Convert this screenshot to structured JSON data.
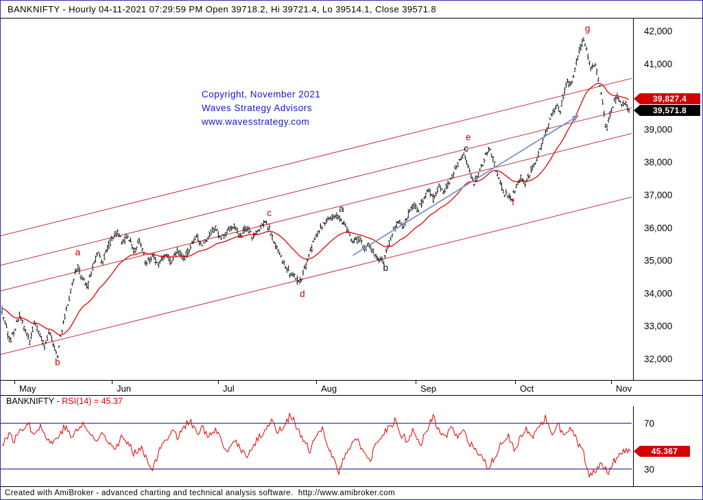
{
  "titlebar": {
    "text": "BANKNIFTY - Hourly 04-11-2021 07:29:59 PM Open 39718.2, Hi 39721.4, Lo 39514.1, Close 39571.8"
  },
  "copyright": {
    "line1": "Copyright, November 2021",
    "line2": "Waves Strategy Advisors",
    "line3": "www.wavesstrategy.com"
  },
  "rsi_panel": {
    "symbol": "BANKNIFTY",
    "separator": " - ",
    "formula": "RSI(14)",
    "value_text": " = 45.37"
  },
  "statusbar": {
    "text": "Created with AmiBroker - advanced charting and technical analysis software.  http://www.amibroker.com"
  },
  "chart_data": [
    {
      "type": "candlestick",
      "symbol": "BANKNIFTY",
      "interval": "Hourly",
      "timestamp": "04-11-2021 07:29:59 PM",
      "last_bar": {
        "open": 39718.2,
        "high": 39721.4,
        "low": 39514.1,
        "close": 39571.8
      },
      "y_axis": {
        "min": 32000,
        "max": 42000,
        "ticks": [
          {
            "value": 42000,
            "label": "42,000"
          },
          {
            "value": 41000,
            "label": "41,000"
          },
          {
            "value": 40000,
            "label": "40,000"
          },
          {
            "value": 39000,
            "label": "39,000"
          },
          {
            "value": 38000,
            "label": "38,000"
          },
          {
            "value": 37000,
            "label": "37,000"
          },
          {
            "value": 36000,
            "label": "36,000"
          },
          {
            "value": 35000,
            "label": "35,000"
          },
          {
            "value": 34000,
            "label": "34,000"
          },
          {
            "value": 33000,
            "label": "33,000"
          },
          {
            "value": 32000,
            "label": "32,000"
          }
        ]
      },
      "x_axis": {
        "months": [
          {
            "label": "May",
            "t": 0.022
          },
          {
            "label": "Jun",
            "t": 0.176
          },
          {
            "label": "Jul",
            "t": 0.345
          },
          {
            "label": "Aug",
            "t": 0.5
          },
          {
            "label": "Sep",
            "t": 0.658
          },
          {
            "label": "Oct",
            "t": 0.815
          },
          {
            "label": "Nov",
            "t": 0.967
          }
        ]
      },
      "colors": {
        "candle": "#000000",
        "ma": "#e00000",
        "channel": "#c23030",
        "arrow": "#7a93c8"
      },
      "channel_lines": [
        {
          "start": 35750,
          "end": 40550
        },
        {
          "start": 34850,
          "end": 39650
        },
        {
          "start": 34070,
          "end": 38870
        },
        {
          "start": 32130,
          "end": 36930
        }
      ],
      "trend_arrow": {
        "from": [
          0.558,
          35150
        ],
        "to": [
          0.916,
          39420
        ]
      },
      "wave_labels": [
        {
          "t": 0.118,
          "price": 35150,
          "text": "a",
          "color": "#d40000"
        },
        {
          "t": 0.086,
          "price": 31800,
          "text": "b",
          "color": "#d40000"
        },
        {
          "t": 0.422,
          "price": 36350,
          "text": "c",
          "color": "#d40000"
        },
        {
          "t": 0.474,
          "price": 33880,
          "text": "d",
          "color": "#d40000"
        },
        {
          "t": 0.536,
          "price": 36480,
          "text": "a",
          "color": "#000000"
        },
        {
          "t": 0.606,
          "price": 34680,
          "text": "b",
          "color": "#000000"
        },
        {
          "t": 0.734,
          "price": 38320,
          "text": "c",
          "color": "#000000"
        },
        {
          "t": 0.737,
          "price": 38660,
          "text": "e",
          "color": "#d40000"
        },
        {
          "t": 0.81,
          "price": 36680,
          "text": "f",
          "color": "#d40000"
        },
        {
          "t": 0.926,
          "price": 41980,
          "text": "g",
          "color": "#d40000"
        }
      ],
      "markers": [
        {
          "label": "39,827.4",
          "value": 39827.4,
          "color": "#d40000"
        },
        {
          "label": "39,571.8",
          "value": 39571.8,
          "color": "#000000"
        }
      ],
      "price_path": [
        [
          0,
          33500
        ],
        [
          0.006,
          33050
        ],
        [
          0.012,
          32500
        ],
        [
          0.02,
          32850
        ],
        [
          0.028,
          33350
        ],
        [
          0.036,
          32900
        ],
        [
          0.044,
          32500
        ],
        [
          0.052,
          33100
        ],
        [
          0.06,
          32700
        ],
        [
          0.068,
          32400
        ],
        [
          0.076,
          32850
        ],
        [
          0.084,
          32300
        ],
        [
          0.089,
          32100
        ],
        [
          0.096,
          32950
        ],
        [
          0.104,
          33600
        ],
        [
          0.112,
          34250
        ],
        [
          0.12,
          34850
        ],
        [
          0.128,
          34450
        ],
        [
          0.136,
          34150
        ],
        [
          0.144,
          34700
        ],
        [
          0.152,
          35250
        ],
        [
          0.16,
          34900
        ],
        [
          0.168,
          35400
        ],
        [
          0.176,
          35650
        ],
        [
          0.184,
          35900
        ],
        [
          0.192,
          35500
        ],
        [
          0.2,
          35800
        ],
        [
          0.21,
          35300
        ],
        [
          0.22,
          35600
        ],
        [
          0.23,
          34900
        ],
        [
          0.24,
          35150
        ],
        [
          0.25,
          34850
        ],
        [
          0.26,
          35250
        ],
        [
          0.27,
          34950
        ],
        [
          0.28,
          35350
        ],
        [
          0.29,
          35050
        ],
        [
          0.3,
          35400
        ],
        [
          0.31,
          35700
        ],
        [
          0.32,
          35450
        ],
        [
          0.33,
          35800
        ],
        [
          0.34,
          36000
        ],
        [
          0.35,
          35650
        ],
        [
          0.36,
          35900
        ],
        [
          0.37,
          36100
        ],
        [
          0.38,
          35750
        ],
        [
          0.39,
          36000
        ],
        [
          0.4,
          35700
        ],
        [
          0.41,
          36000
        ],
        [
          0.42,
          36200
        ],
        [
          0.43,
          35800
        ],
        [
          0.44,
          35300
        ],
        [
          0.45,
          34900
        ],
        [
          0.46,
          34600
        ],
        [
          0.47,
          34420
        ],
        [
          0.476,
          34350
        ],
        [
          0.484,
          34800
        ],
        [
          0.492,
          35250
        ],
        [
          0.5,
          35750
        ],
        [
          0.51,
          36050
        ],
        [
          0.52,
          36200
        ],
        [
          0.53,
          36350
        ],
        [
          0.538,
          36300
        ],
        [
          0.546,
          36100
        ],
        [
          0.554,
          35800
        ],
        [
          0.562,
          35550
        ],
        [
          0.57,
          35650
        ],
        [
          0.578,
          35350
        ],
        [
          0.586,
          35500
        ],
        [
          0.594,
          35150
        ],
        [
          0.602,
          35050
        ],
        [
          0.608,
          34950
        ],
        [
          0.616,
          35450
        ],
        [
          0.624,
          35900
        ],
        [
          0.632,
          36200
        ],
        [
          0.64,
          36050
        ],
        [
          0.648,
          36400
        ],
        [
          0.656,
          36700
        ],
        [
          0.664,
          36500
        ],
        [
          0.672,
          36900
        ],
        [
          0.68,
          37150
        ],
        [
          0.688,
          36850
        ],
        [
          0.696,
          37250
        ],
        [
          0.704,
          37050
        ],
        [
          0.712,
          37350
        ],
        [
          0.72,
          37650
        ],
        [
          0.728,
          37950
        ],
        [
          0.737,
          38200
        ],
        [
          0.745,
          37700
        ],
        [
          0.753,
          37350
        ],
        [
          0.761,
          37650
        ],
        [
          0.769,
          38050
        ],
        [
          0.777,
          38450
        ],
        [
          0.785,
          37950
        ],
        [
          0.793,
          37450
        ],
        [
          0.8,
          37100
        ],
        [
          0.807,
          36950
        ],
        [
          0.813,
          36850
        ],
        [
          0.82,
          37250
        ],
        [
          0.828,
          37550
        ],
        [
          0.836,
          37350
        ],
        [
          0.844,
          37750
        ],
        [
          0.852,
          38050
        ],
        [
          0.86,
          38450
        ],
        [
          0.868,
          38950
        ],
        [
          0.876,
          39350
        ],
        [
          0.884,
          39750
        ],
        [
          0.89,
          39550
        ],
        [
          0.896,
          40050
        ],
        [
          0.902,
          40450
        ],
        [
          0.908,
          40250
        ],
        [
          0.914,
          40850
        ],
        [
          0.92,
          41350
        ],
        [
          0.928,
          41750
        ],
        [
          0.934,
          41250
        ],
        [
          0.94,
          40850
        ],
        [
          0.946,
          41050
        ],
        [
          0.952,
          40450
        ],
        [
          0.958,
          39850
        ],
        [
          0.964,
          38950
        ],
        [
          0.97,
          39450
        ],
        [
          0.976,
          39850
        ],
        [
          0.982,
          39980
        ],
        [
          0.988,
          39680
        ],
        [
          0.994,
          39780
        ],
        [
          1,
          39572
        ]
      ]
    },
    {
      "type": "line",
      "name": "RSI(14)",
      "value": 45.37,
      "value_label": "45.367",
      "ylim": [
        15,
        85
      ],
      "color": "#e00000",
      "level_color": "#000080",
      "levels": [
        {
          "value": 70,
          "label": "70"
        },
        {
          "value": 30,
          "label": "30"
        }
      ],
      "path": [
        [
          0,
          52
        ],
        [
          0.01,
          60
        ],
        [
          0.02,
          55
        ],
        [
          0.03,
          65
        ],
        [
          0.04,
          70
        ],
        [
          0.05,
          62
        ],
        [
          0.06,
          68
        ],
        [
          0.07,
          58
        ],
        [
          0.08,
          52
        ],
        [
          0.09,
          60
        ],
        [
          0.1,
          67
        ],
        [
          0.11,
          58
        ],
        [
          0.12,
          64
        ],
        [
          0.13,
          70
        ],
        [
          0.14,
          60
        ],
        [
          0.15,
          54
        ],
        [
          0.16,
          62
        ],
        [
          0.17,
          55
        ],
        [
          0.18,
          48
        ],
        [
          0.19,
          58
        ],
        [
          0.2,
          52
        ],
        [
          0.21,
          44
        ],
        [
          0.22,
          50
        ],
        [
          0.23,
          40
        ],
        [
          0.24,
          30
        ],
        [
          0.25,
          45
        ],
        [
          0.26,
          56
        ],
        [
          0.27,
          64
        ],
        [
          0.28,
          58
        ],
        [
          0.29,
          68
        ],
        [
          0.3,
          72
        ],
        [
          0.31,
          60
        ],
        [
          0.32,
          66
        ],
        [
          0.33,
          58
        ],
        [
          0.34,
          64
        ],
        [
          0.35,
          52
        ],
        [
          0.36,
          44
        ],
        [
          0.37,
          56
        ],
        [
          0.38,
          48
        ],
        [
          0.39,
          40
        ],
        [
          0.4,
          50
        ],
        [
          0.41,
          58
        ],
        [
          0.42,
          66
        ],
        [
          0.43,
          72
        ],
        [
          0.44,
          62
        ],
        [
          0.45,
          70
        ],
        [
          0.46,
          78
        ],
        [
          0.47,
          64
        ],
        [
          0.48,
          54
        ],
        [
          0.49,
          46
        ],
        [
          0.5,
          58
        ],
        [
          0.51,
          64
        ],
        [
          0.52,
          50
        ],
        [
          0.53,
          36
        ],
        [
          0.535,
          26
        ],
        [
          0.545,
          40
        ],
        [
          0.555,
          52
        ],
        [
          0.565,
          58
        ],
        [
          0.575,
          44
        ],
        [
          0.585,
          36
        ],
        [
          0.595,
          50
        ],
        [
          0.605,
          60
        ],
        [
          0.615,
          66
        ],
        [
          0.625,
          72
        ],
        [
          0.635,
          60
        ],
        [
          0.645,
          55
        ],
        [
          0.655,
          64
        ],
        [
          0.665,
          50
        ],
        [
          0.675,
          62
        ],
        [
          0.685,
          76
        ],
        [
          0.695,
          64
        ],
        [
          0.705,
          58
        ],
        [
          0.715,
          66
        ],
        [
          0.725,
          56
        ],
        [
          0.735,
          62
        ],
        [
          0.745,
          52
        ],
        [
          0.755,
          44
        ],
        [
          0.765,
          38
        ],
        [
          0.775,
          30
        ],
        [
          0.785,
          42
        ],
        [
          0.795,
          54
        ],
        [
          0.805,
          60
        ],
        [
          0.815,
          48
        ],
        [
          0.825,
          56
        ],
        [
          0.835,
          64
        ],
        [
          0.845,
          58
        ],
        [
          0.855,
          68
        ],
        [
          0.865,
          74
        ],
        [
          0.875,
          62
        ],
        [
          0.885,
          70
        ],
        [
          0.895,
          58
        ],
        [
          0.905,
          66
        ],
        [
          0.915,
          54
        ],
        [
          0.925,
          44
        ],
        [
          0.935,
          22
        ],
        [
          0.945,
          30
        ],
        [
          0.955,
          36
        ],
        [
          0.965,
          28
        ],
        [
          0.975,
          38
        ],
        [
          0.985,
          44
        ],
        [
          1,
          45.37
        ]
      ]
    }
  ]
}
